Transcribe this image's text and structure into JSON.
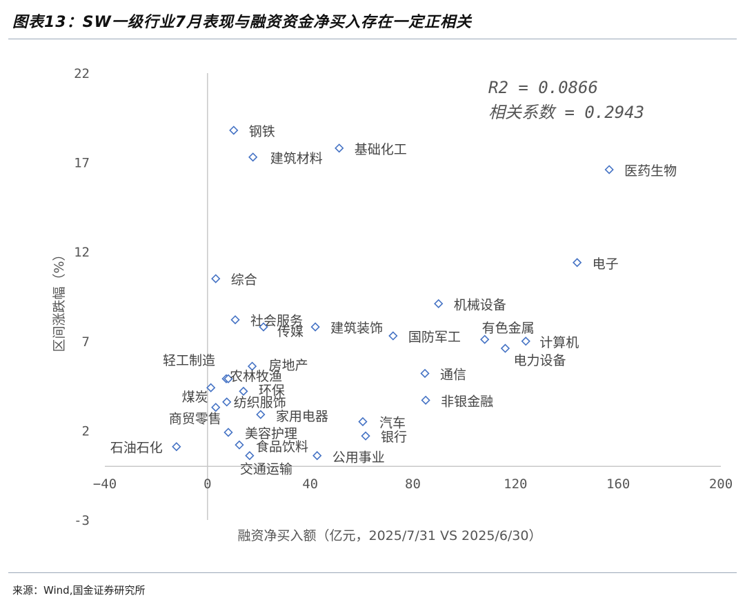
{
  "title": "图表13：SW一级行业7月表现与融资资金净买入存在一定正相关",
  "source": "来源：Wind,国金证券研究所",
  "chart_data": {
    "type": "scatter",
    "xlabel": "融资净买入额（亿元，2025/7/31 VS 2025/6/30）",
    "ylabel": "区间涨跌幅（%）",
    "xlim": [
      -40,
      200
    ],
    "ylim": [
      -3,
      22
    ],
    "xticks": [
      -40,
      0,
      40,
      80,
      120,
      160,
      200
    ],
    "yticks": [
      22,
      17,
      12,
      7,
      2,
      -3
    ],
    "grid": false,
    "marker_color": "#4472C4",
    "annotations": [
      "R2 = 0.0866",
      "相关系数 = 0.2943"
    ],
    "points": [
      {
        "name": "钢铁",
        "x": 10.2,
        "y": 18.8
      },
      {
        "name": "基础化工",
        "x": 51.3,
        "y": 17.8
      },
      {
        "name": "建筑材料",
        "x": 17.7,
        "y": 17.3
      },
      {
        "name": "医药生物",
        "x": 156.5,
        "y": 16.6
      },
      {
        "name": "电子",
        "x": 144.0,
        "y": 11.4
      },
      {
        "name": "综合",
        "x": 3.2,
        "y": 10.5
      },
      {
        "name": "机械设备",
        "x": 90.0,
        "y": 9.1
      },
      {
        "name": "社会服务",
        "x": 10.8,
        "y": 8.2
      },
      {
        "name": "传媒",
        "x": 21.8,
        "y": 7.8
      },
      {
        "name": "建筑装饰",
        "x": 42.0,
        "y": 7.8
      },
      {
        "name": "国防军工",
        "x": 72.3,
        "y": 7.3
      },
      {
        "name": "有色金属",
        "x": 108.0,
        "y": 7.1
      },
      {
        "name": "计算机",
        "x": 124.0,
        "y": 7.0
      },
      {
        "name": "电力设备",
        "x": 116.0,
        "y": 6.6
      },
      {
        "name": "房地产",
        "x": 17.4,
        "y": 5.6
      },
      {
        "name": "轻工制造",
        "x": 7.3,
        "y": 4.9
      },
      {
        "name": "农林牧渔",
        "x": 8.1,
        "y": 4.9
      },
      {
        "name": "通信",
        "x": 84.7,
        "y": 5.2
      },
      {
        "name": "煤炭",
        "x": 1.3,
        "y": 4.4
      },
      {
        "name": "环保",
        "x": 14.0,
        "y": 4.2
      },
      {
        "name": "纺织服饰",
        "x": 7.5,
        "y": 3.6
      },
      {
        "name": "商贸零售",
        "x": 3.2,
        "y": 3.3
      },
      {
        "name": "非银金融",
        "x": 85.0,
        "y": 3.7
      },
      {
        "name": "家用电器",
        "x": 20.7,
        "y": 2.9
      },
      {
        "name": "汽车",
        "x": 60.5,
        "y": 2.5
      },
      {
        "name": "美容护理",
        "x": 8.1,
        "y": 1.9
      },
      {
        "name": "银行",
        "x": 61.6,
        "y": 1.7
      },
      {
        "name": "食品饮料",
        "x": 12.4,
        "y": 1.2
      },
      {
        "name": "石油石化",
        "x": -12.1,
        "y": 1.1
      },
      {
        "name": "公用事业",
        "x": 42.7,
        "y": 0.6
      },
      {
        "name": "交通运输",
        "x": 16.4,
        "y": 0.6
      }
    ]
  }
}
